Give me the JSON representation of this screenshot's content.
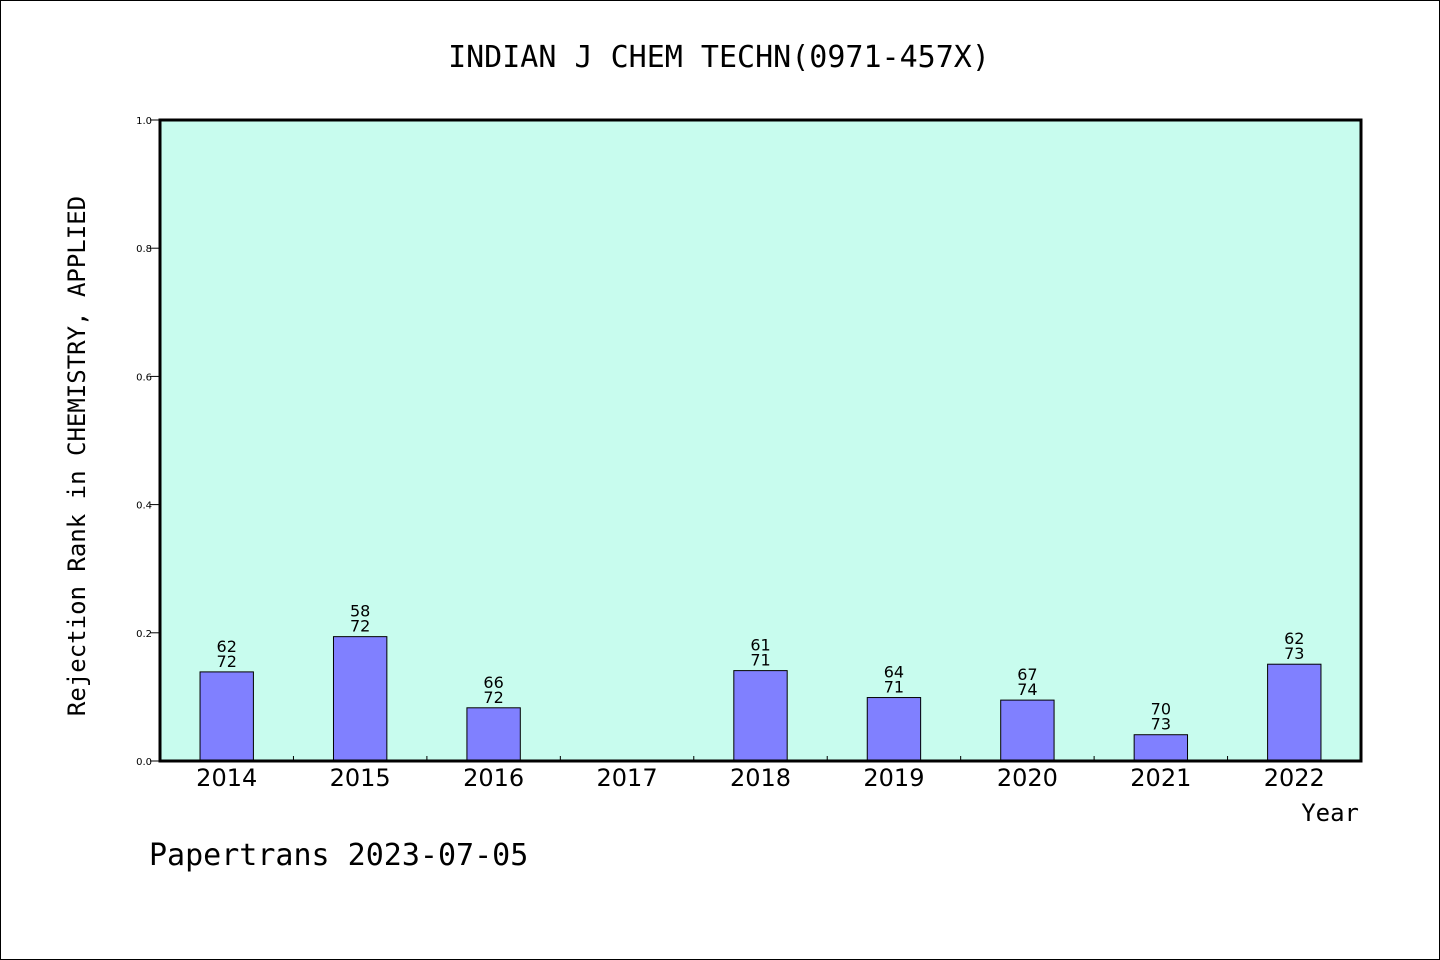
{
  "colors": {
    "plot_background": "#c8fcee",
    "bar_fill": "#8080ff",
    "bar_stroke": "#000000",
    "axis": "#000000"
  },
  "footer": "Papertrans 2023-07-05",
  "chart_data": {
    "type": "bar",
    "title": "INDIAN J CHEM TECHN(0971-457X)",
    "xlabel": "Year",
    "ylabel": "Rejection Rank in CHEMISTRY, APPLIED",
    "ylim": [
      0,
      1.0
    ],
    "yticks": [
      "0.0",
      "0.2",
      "0.4",
      "0.6",
      "0.8",
      "1.0"
    ],
    "grid": false,
    "categories": [
      "2014",
      "2015",
      "2016",
      "2017",
      "2018",
      "2019",
      "2020",
      "2021",
      "2022"
    ],
    "values": [
      0.139,
      0.194,
      0.083,
      null,
      0.141,
      0.099,
      0.095,
      0.041,
      0.151
    ],
    "labels_top": [
      "62",
      "58",
      "66",
      null,
      "61",
      "64",
      "67",
      "70",
      "62"
    ],
    "labels_bottom": [
      "72",
      "72",
      "72",
      null,
      "71",
      "71",
      "74",
      "73",
      "73"
    ]
  }
}
